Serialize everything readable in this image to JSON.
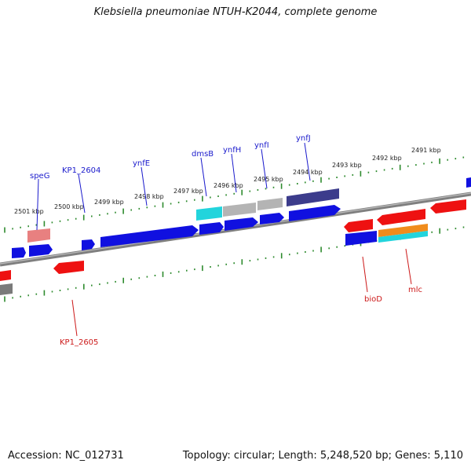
{
  "title": "Klebsiella pneumoniae NTUH-K2044, complete genome",
  "accession": "Accession: NC_012731",
  "summary": "Topology: circular; Length: 5,248,520 bp; Genes: 5,110",
  "colors": {
    "background": "#ffffff",
    "backbone": "#8a8a8a",
    "tick": "#2e8b2e",
    "forward_label": "#1a1acc",
    "reverse_label": "#cc1a1a",
    "gene_blue": "#1010e0",
    "gene_red": "#ee1111",
    "gene_navy": "#3c3c8c",
    "gene_cyan": "#22d4dc",
    "gene_silver": "#b4b4b4",
    "gene_salmon": "#e88080",
    "gene_orange": "#f08c1c",
    "gene_gray": "#7a7a7a"
  },
  "scale_labels": [
    "2501 kbp",
    "2500 kbp",
    "2499 kbp",
    "2498 kbp",
    "2497 kbp",
    "2496 kbp",
    "2495 kbp",
    "2494 kbp",
    "2493 kbp",
    "2492 kbp",
    "2491 kbp"
  ],
  "gene_labels": {
    "speG": "speG",
    "KP1_2604": "KP1_2604",
    "ynfE": "ynfE",
    "dmsB": "dmsB",
    "ynfH": "ynfH",
    "ynfI": "ynfI",
    "ynfJ": "ynfJ",
    "bioD": "bioD",
    "mlc": "mlc",
    "KP1_2605": "KP1_2605"
  }
}
